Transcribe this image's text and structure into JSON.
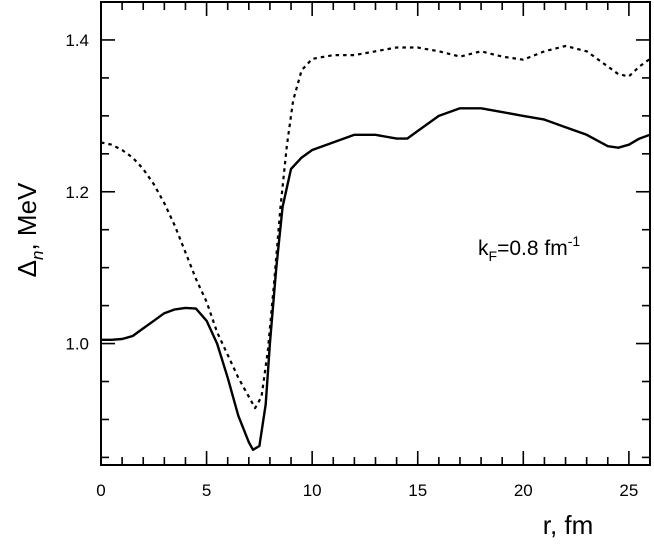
{
  "chart_data": {
    "type": "line",
    "title": "",
    "xlabel": "r, fm",
    "ylabel": {
      "main": "Δ",
      "sub": "n",
      "rest": ", MeV"
    },
    "xlim": [
      0,
      26
    ],
    "ylim": [
      0.84,
      1.45
    ],
    "x_ticks": [
      0,
      5,
      10,
      15,
      20,
      25
    ],
    "x_tick_labels": [
      "0",
      "5",
      "10",
      "15",
      "20",
      "25"
    ],
    "y_ticks": [
      1.0,
      1.2,
      1.4
    ],
    "y_tick_labels": [
      "1.0",
      "1.2",
      "1.4"
    ],
    "grid": false,
    "legend": "none",
    "annotation": {
      "main": "k",
      "sub": "F",
      "rest": "=0.8 fm",
      "sup": "-1",
      "x": 17.8,
      "y": 1.13
    },
    "series": [
      {
        "style": "solid",
        "color": "#000000",
        "x": [
          0,
          0.5,
          1,
          1.5,
          2,
          2.5,
          3,
          3.5,
          4,
          4.5,
          5,
          5.5,
          6,
          6.5,
          7,
          7.2,
          7.5,
          7.8,
          8,
          8.3,
          8.6,
          9,
          9.5,
          10,
          11,
          12,
          13,
          14,
          14.5,
          15,
          16,
          17,
          17.5,
          18,
          19,
          20,
          21,
          22,
          23,
          24,
          24.5,
          25,
          25.5,
          26
        ],
        "y": [
          1.005,
          1.005,
          1.006,
          1.01,
          1.02,
          1.03,
          1.04,
          1.045,
          1.047,
          1.046,
          1.03,
          1.0,
          0.955,
          0.905,
          0.87,
          0.86,
          0.865,
          0.92,
          1.0,
          1.1,
          1.18,
          1.23,
          1.245,
          1.255,
          1.265,
          1.275,
          1.275,
          1.27,
          1.27,
          1.28,
          1.3,
          1.31,
          1.31,
          1.31,
          1.305,
          1.3,
          1.295,
          1.285,
          1.275,
          1.26,
          1.258,
          1.262,
          1.27,
          1.275
        ]
      },
      {
        "style": "dotted",
        "color": "#000000",
        "x": [
          0,
          0.5,
          1,
          1.5,
          2,
          2.5,
          3,
          3.5,
          4,
          4.5,
          5,
          5.5,
          6,
          6.5,
          7,
          7.3,
          7.6,
          7.9,
          8.2,
          8.5,
          8.8,
          9.1,
          9.5,
          10,
          11,
          12,
          13,
          14,
          15,
          16,
          17,
          18,
          19,
          20,
          21,
          22,
          23,
          24,
          24.5,
          25,
          25.5,
          26
        ],
        "y": [
          1.265,
          1.262,
          1.255,
          1.245,
          1.23,
          1.21,
          1.185,
          1.155,
          1.12,
          1.085,
          1.055,
          1.015,
          0.985,
          0.955,
          0.93,
          0.915,
          0.93,
          0.99,
          1.08,
          1.18,
          1.26,
          1.32,
          1.36,
          1.375,
          1.38,
          1.38,
          1.385,
          1.39,
          1.39,
          1.385,
          1.378,
          1.385,
          1.378,
          1.374,
          1.385,
          1.392,
          1.385,
          1.365,
          1.355,
          1.352,
          1.365,
          1.375
        ]
      }
    ]
  }
}
